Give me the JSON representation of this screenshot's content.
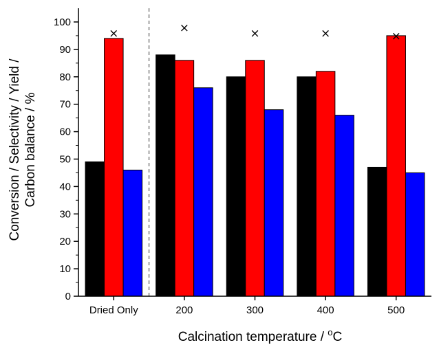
{
  "chart_data": {
    "type": "bar",
    "categories": [
      "Dried Only",
      "200",
      "300",
      "400",
      "500"
    ],
    "series": [
      {
        "values": [
          49,
          88,
          80,
          80,
          47
        ],
        "color": "#000000"
      },
      {
        "values": [
          94,
          86,
          86,
          82,
          95
        ],
        "color": "#ff0000"
      },
      {
        "values": [
          46,
          76,
          68,
          66,
          45
        ],
        "color": "#0000ff"
      }
    ],
    "markers": {
      "symbol": "×",
      "values": [
        96,
        98,
        96,
        96,
        95
      ]
    },
    "ylabel_line1": "Conversion / Selectivity / Yield /",
    "ylabel_line2": "Carbon balance / %",
    "xlabel_main": "Calcination temperature / ",
    "xlabel_sup": "o",
    "xlabel_unit": "C",
    "ylim": [
      0,
      105
    ],
    "yticks": [
      0,
      10,
      20,
      30,
      40,
      50,
      60,
      70,
      80,
      90,
      100
    ],
    "grid": false,
    "legend": "none",
    "divider": {
      "after_category": "Dried Only",
      "style": "dashed"
    }
  }
}
